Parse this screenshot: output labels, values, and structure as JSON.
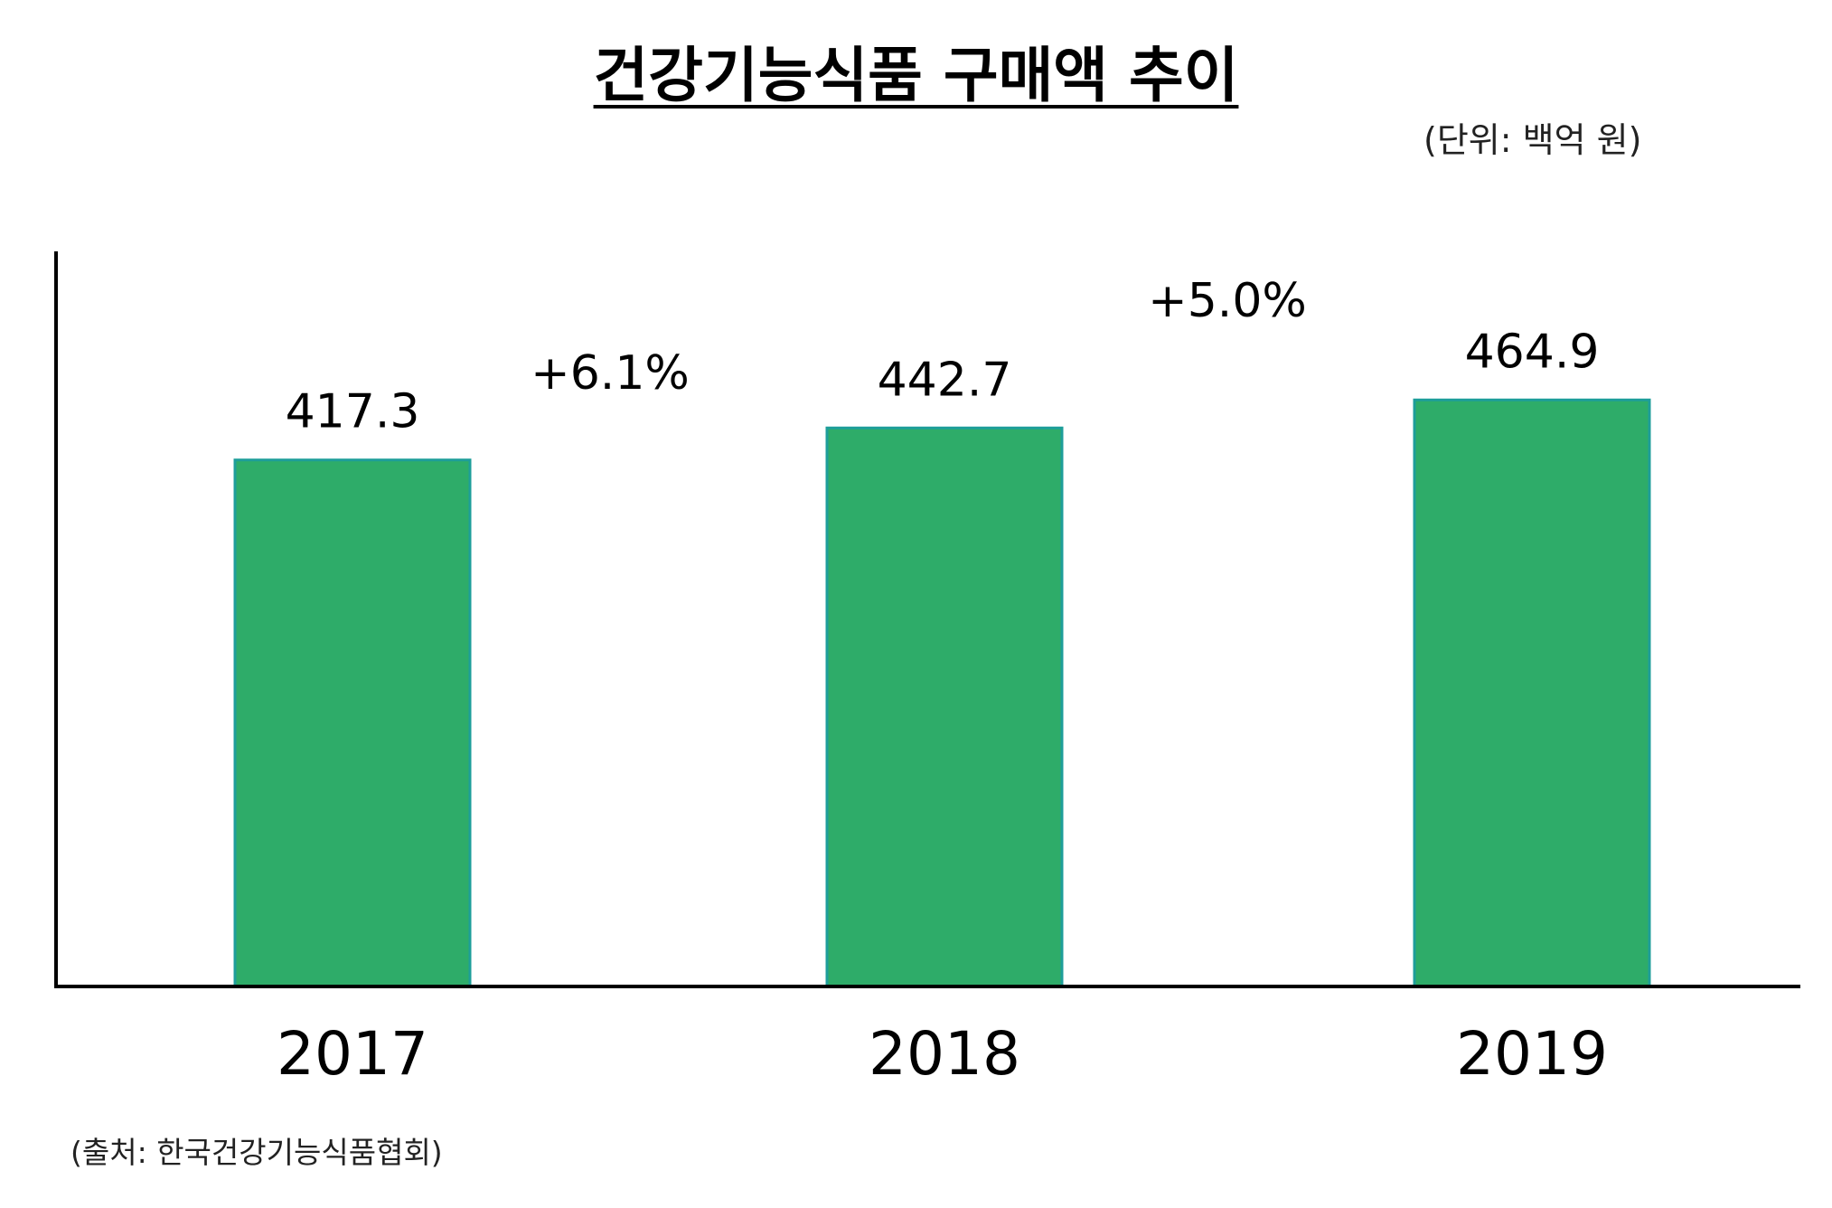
{
  "chart_data": {
    "type": "bar",
    "title": "건강기능식품 구매액 추이",
    "unit": "(단위:  백억 원)",
    "source": "(출처: 한국건강기능식품협회)",
    "categories": [
      "2017",
      "2018",
      "2019"
    ],
    "values": [
      417.3,
      442.7,
      464.9
    ],
    "value_labels": [
      "417.3",
      "442.7",
      "464.9"
    ],
    "growth_labels": [
      "+6.1%",
      "+5.0%"
    ],
    "ylim": [
      0,
      560
    ],
    "grid": false,
    "legend": "none",
    "colors": {
      "bar_fill": "#2EAC69",
      "bar_stroke": "#1E9E9A",
      "axis": "#000000"
    }
  }
}
